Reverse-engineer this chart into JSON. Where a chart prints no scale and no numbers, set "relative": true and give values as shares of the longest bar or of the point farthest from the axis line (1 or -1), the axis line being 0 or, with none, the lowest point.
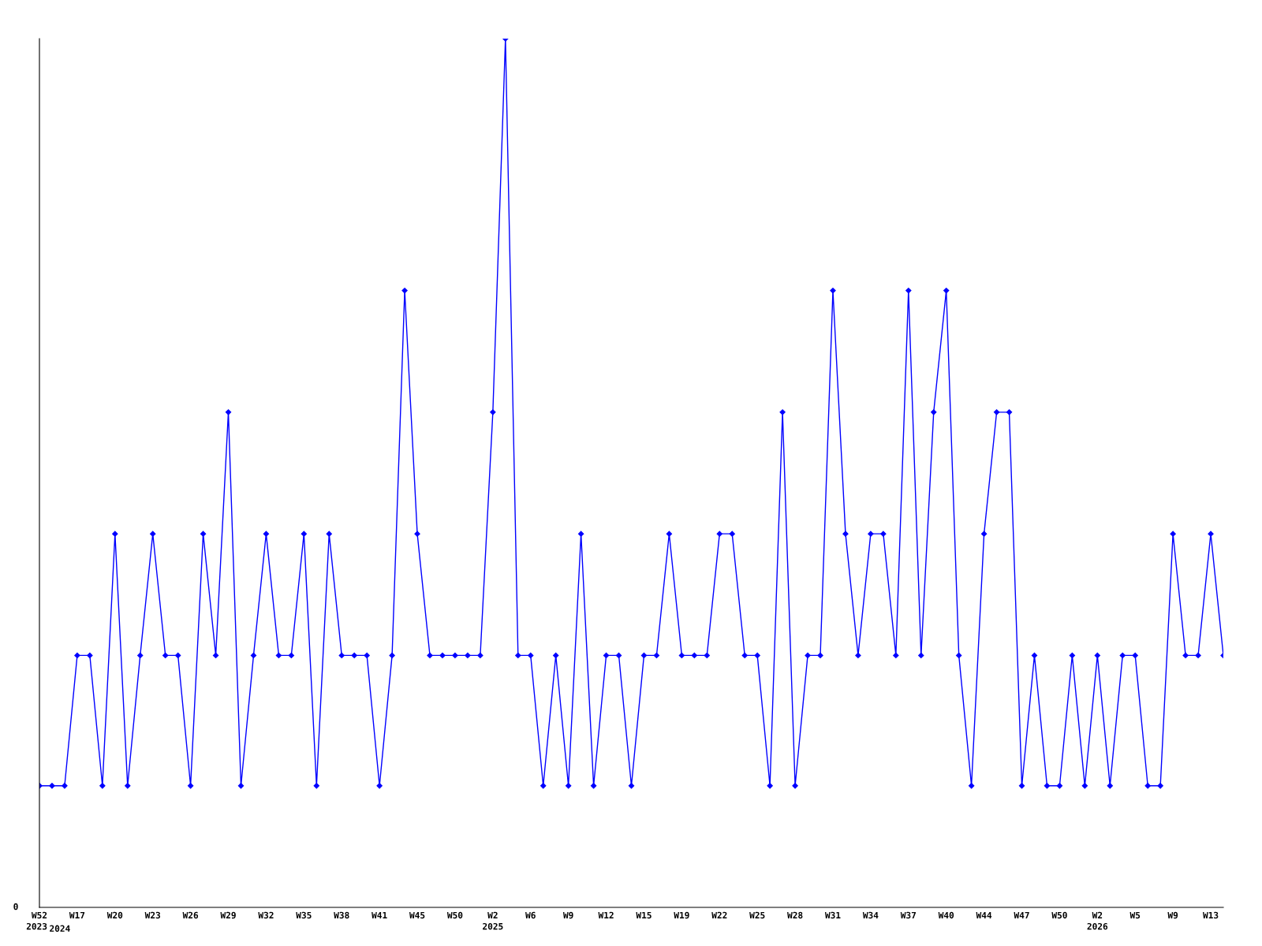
{
  "chart_data": {
    "type": "line",
    "relative": true,
    "marker": "diamond",
    "line_style": "solid",
    "grid": false,
    "legend": false,
    "annotations": [
      "0",
      "2024"
    ],
    "categories": [
      "W52\n2023",
      null,
      null,
      "W17",
      null,
      null,
      "W20",
      null,
      null,
      "W23",
      null,
      null,
      "W26",
      null,
      null,
      "W29",
      null,
      null,
      "W32",
      null,
      null,
      "W35",
      null,
      null,
      "W38",
      null,
      null,
      "W41",
      null,
      null,
      "W45",
      null,
      null,
      "W50",
      null,
      null,
      "W2\n2025",
      null,
      null,
      "W6",
      null,
      null,
      "W9",
      null,
      null,
      "W12",
      null,
      null,
      "W15",
      null,
      null,
      "W19",
      null,
      null,
      "W22",
      null,
      null,
      "W25",
      null,
      null,
      "W28",
      null,
      null,
      "W31",
      null,
      null,
      "W34",
      null,
      null,
      "W37",
      null,
      null,
      "W40",
      null,
      null,
      "W44",
      null,
      null,
      "W47",
      null,
      null,
      "W50",
      null,
      null,
      "W2\n2026",
      null,
      null,
      "W5",
      null,
      null,
      "W9",
      null,
      null,
      "W13",
      null
    ],
    "series": [
      {
        "color": "#0000ff",
        "values": [
          0.14,
          0.14,
          0.14,
          0.29,
          0.29,
          0.14,
          0.43,
          0.14,
          0.29,
          0.43,
          0.29,
          0.29,
          0.14,
          0.43,
          0.29,
          0.57,
          0.14,
          0.29,
          0.43,
          0.29,
          0.29,
          0.43,
          0.14,
          0.43,
          0.29,
          0.29,
          0.29,
          0.14,
          0.29,
          0.71,
          0.43,
          0.29,
          0.29,
          0.29,
          0.29,
          0.29,
          0.57,
          1,
          0.29,
          0.29,
          0.14,
          0.29,
          0.14,
          0.43,
          0.14,
          0.29,
          0.29,
          0.14,
          0.29,
          0.29,
          0.43,
          0.29,
          0.29,
          0.29,
          0.43,
          0.43,
          0.29,
          0.29,
          0.14,
          0.57,
          0.14,
          0.29,
          0.29,
          0.71,
          0.43,
          0.29,
          0.43,
          0.43,
          0.29,
          0.71,
          0.29,
          0.57,
          0.71,
          0.29,
          0.14,
          0.43,
          0.57,
          0.57,
          0.14,
          0.29,
          0.14,
          0.14,
          0.29,
          0.14,
          0.29,
          0.14,
          0.29,
          0.29,
          0.14,
          0.14,
          0.43,
          0.29,
          0.29,
          0.43,
          0.29
        ]
      }
    ]
  }
}
